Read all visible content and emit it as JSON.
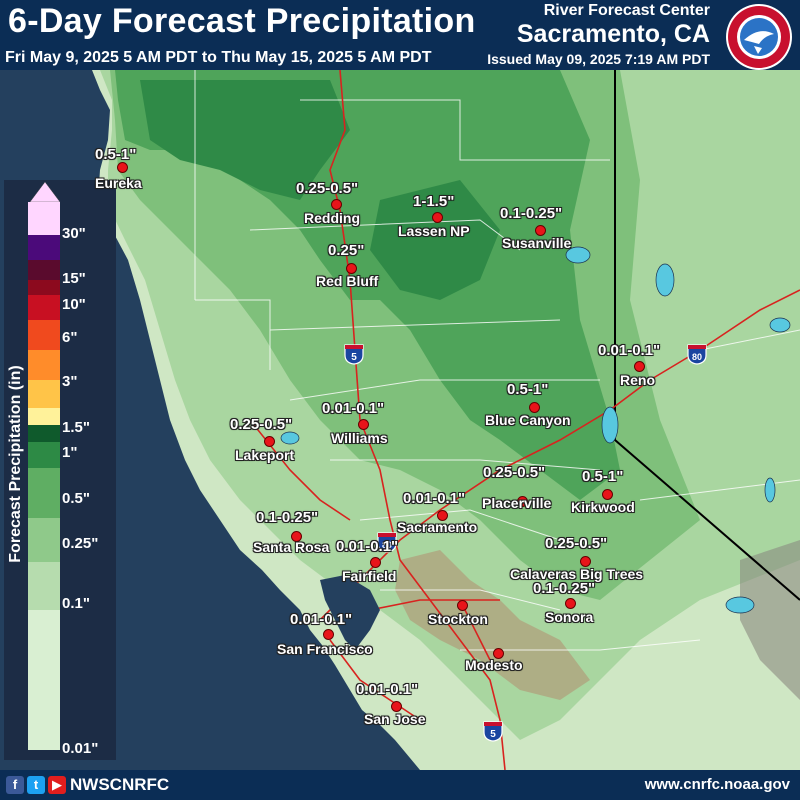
{
  "header": {
    "title": "6-Day Forecast Precipitation",
    "subtitle": "Fri May 9, 2025 5 AM PDT to Thu May 15, 2025 5 AM PDT",
    "issued": "Issued May 09, 2025 7:19 AM PDT",
    "center_label": "River Forecast Center",
    "center_city": "Sacramento, CA",
    "logo_icon": "nws-logo-icon"
  },
  "footer": {
    "handle": "NWSCNRFC",
    "url": "www.cnrfc.noaa.gov",
    "icons": [
      "facebook-icon",
      "twitter-icon",
      "youtube-icon"
    ]
  },
  "legend": {
    "title": "Forecast Precipitation (in)",
    "ticks": [
      "30\"",
      "15\"",
      "10\"",
      "6\"",
      "3\"",
      "1.5\"",
      "1\"",
      "0.5\"",
      "0.25\"",
      "0.1\"",
      "0.01\""
    ],
    "colors": [
      "#ffd6ff",
      "#4b0a7a",
      "#5a0b2d",
      "#8c0a1e",
      "#c81022",
      "#f04a1e",
      "#ff8c2a",
      "#ffc448",
      "#fff29a",
      "#0f5a2c",
      "#2d8a45",
      "#5fae63",
      "#8fc98a",
      "#b6dcae",
      "#d9efd2"
    ]
  },
  "shields": [
    {
      "label": "5"
    },
    {
      "label": "80"
    },
    {
      "label": "80"
    },
    {
      "label": "5"
    }
  ],
  "locations": [
    {
      "name": "Eureka",
      "amount": "0.5-1\""
    },
    {
      "name": "Redding",
      "amount": "0.25-0.5\""
    },
    {
      "name": "Lassen NP",
      "amount": "1-1.5\""
    },
    {
      "name": "Susanville",
      "amount": "0.1-0.25\""
    },
    {
      "name": "Red Bluff",
      "amount": "0.25\""
    },
    {
      "name": "Reno",
      "amount": "0.01-0.1\""
    },
    {
      "name": "Blue Canyon",
      "amount": "0.5-1\""
    },
    {
      "name": "Williams",
      "amount": "0.01-0.1\""
    },
    {
      "name": "Lakeport",
      "amount": "0.25-0.5\""
    },
    {
      "name": "Placerville",
      "amount": "0.25-0.5\""
    },
    {
      "name": "Kirkwood",
      "amount": "0.5-1\""
    },
    {
      "name": "Sacramento",
      "amount": "0.01-0.1\""
    },
    {
      "name": "Santa Rosa",
      "amount": "0.1-0.25\""
    },
    {
      "name": "Fairfield",
      "amount": "0.01-0.1\""
    },
    {
      "name": "Calaveras Big Trees",
      "amount": "0.25-0.5\""
    },
    {
      "name": "Sonora",
      "amount": "0.1-0.25\""
    },
    {
      "name": "Stockton",
      "amount": ""
    },
    {
      "name": "San Francisco",
      "amount": "0.01-0.1\""
    },
    {
      "name": "Modesto",
      "amount": ""
    },
    {
      "name": "San Jose",
      "amount": "0.01-0.1\""
    }
  ]
}
